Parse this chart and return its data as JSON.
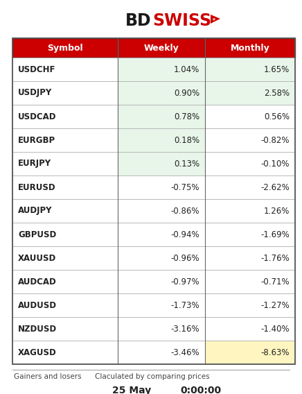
{
  "header": [
    "Symbol",
    "Weekly",
    "Monthly"
  ],
  "rows": [
    [
      "USDCHF",
      "1.04%",
      "1.65%"
    ],
    [
      "USDJPY",
      "0.90%",
      "2.58%"
    ],
    [
      "USDCAD",
      "0.78%",
      "0.56%"
    ],
    [
      "EURGBP",
      "0.18%",
      "-0.82%"
    ],
    [
      "EURJPY",
      "0.13%",
      "-0.10%"
    ],
    [
      "EURUSD",
      "-0.75%",
      "-2.62%"
    ],
    [
      "AUDJPY",
      "-0.86%",
      "1.26%"
    ],
    [
      "GBPUSD",
      "-0.94%",
      "-1.69%"
    ],
    [
      "XAUUSD",
      "-0.96%",
      "-1.76%"
    ],
    [
      "AUDCAD",
      "-0.97%",
      "-0.71%"
    ],
    [
      "AUDUSD",
      "-1.73%",
      "-1.27%"
    ],
    [
      "NZDUSD",
      "-3.16%",
      "-1.40%"
    ],
    [
      "XAGUSD",
      "-3.46%",
      "-8.63%"
    ]
  ],
  "weekly_green_rows": [
    0,
    1,
    2,
    3,
    4
  ],
  "monthly_green_rows": [
    0,
    1
  ],
  "monthly_yellow_rows": [
    12
  ],
  "header_bg": "#cc0000",
  "header_text_color": "#ffffff",
  "green_bg": "#e8f5e9",
  "yellow_bg": "#fef5c0",
  "white_bg": "#ffffff",
  "footer_text": "Gainers and losers",
  "footer_note": "Claculated by comparing prices",
  "footer_date": "25 May",
  "footer_time": "0:00:00"
}
